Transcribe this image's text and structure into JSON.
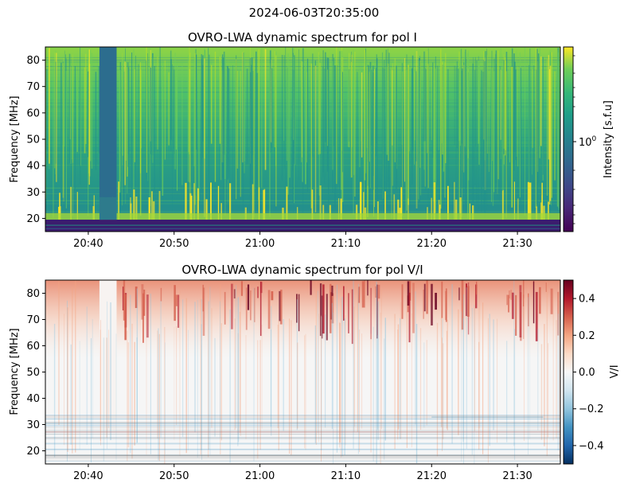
{
  "figure": {
    "suptitle": "2024-06-03T20:35:00"
  },
  "chart_data": [
    {
      "type": "heatmap",
      "title": "OVRO-LWA dynamic spectrum for pol I",
      "xlabel": "",
      "ylabel": "Frequency [MHz]",
      "x_tick_labels": [
        "20:40",
        "20:50",
        "21:00",
        "21:10",
        "21:20",
        "21:30"
      ],
      "x_tick_minutes": [
        40,
        50,
        60,
        70,
        80,
        90
      ],
      "xlim_minutes": [
        35,
        95
      ],
      "x_reference": "20:00",
      "y_ticks": [
        20,
        30,
        40,
        50,
        60,
        70,
        80
      ],
      "ylim": [
        15,
        85
      ],
      "colormap": "viridis",
      "colorbar": {
        "label": "Intensity [s.f.u]",
        "scale": "log",
        "tick_label": "10",
        "tick_exponent": "0"
      },
      "features": {
        "gap_band_minutes": [
          41.3,
          43.3
        ],
        "low_freq_dark_below_mhz": 19.5,
        "bright_band_mhz": [
          19.5,
          22
        ]
      }
    },
    {
      "type": "heatmap",
      "title": "OVRO-LWA dynamic spectrum for pol V/I",
      "xlabel": "",
      "ylabel": "Frequency [MHz]",
      "x_tick_labels": [
        "20:40",
        "20:50",
        "21:00",
        "21:10",
        "21:20",
        "21:30"
      ],
      "x_tick_minutes": [
        40,
        50,
        60,
        70,
        80,
        90
      ],
      "xlim_minutes": [
        35,
        95
      ],
      "y_ticks": [
        20,
        30,
        40,
        50,
        60,
        70,
        80
      ],
      "ylim": [
        15,
        85
      ],
      "colormap": "RdBu_r",
      "colorbar": {
        "label": "V/I",
        "ticks": [
          0.4,
          0.2,
          0.0,
          -0.2,
          -0.4
        ],
        "tick_labels": [
          "0.4",
          "0.2",
          "0.0",
          "−0.2",
          "−0.4"
        ],
        "range": [
          -0.5,
          0.5
        ]
      }
    }
  ]
}
